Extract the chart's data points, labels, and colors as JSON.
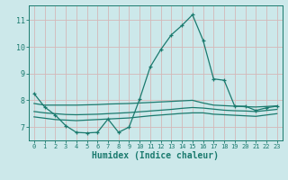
{
  "background_color": "#cce8ea",
  "grid_color": "#b8d8da",
  "line_color": "#1a7a6e",
  "xlabel": "Humidex (Indice chaleur)",
  "xlabel_fontsize": 7,
  "yticks": [
    7,
    8,
    9,
    10,
    11
  ],
  "xticks": [
    0,
    1,
    2,
    3,
    4,
    5,
    6,
    7,
    8,
    9,
    10,
    11,
    12,
    13,
    14,
    15,
    16,
    17,
    18,
    19,
    20,
    21,
    22,
    23
  ],
  "xlim": [
    -0.5,
    23.5
  ],
  "ylim": [
    6.5,
    11.55
  ],
  "line1_x": [
    0,
    1,
    2,
    3,
    4,
    5,
    6,
    7,
    8,
    9,
    10,
    11,
    12,
    13,
    14,
    15,
    16,
    17,
    18,
    19,
    20,
    21,
    22,
    23
  ],
  "line1_y": [
    8.25,
    7.75,
    7.45,
    7.05,
    6.8,
    6.78,
    6.8,
    7.3,
    6.8,
    7.0,
    8.05,
    9.25,
    9.9,
    10.45,
    10.8,
    11.2,
    10.25,
    8.8,
    8.75,
    7.78,
    7.78,
    7.62,
    7.72,
    7.78
  ],
  "line2_x": [
    0,
    1,
    2,
    3,
    4,
    5,
    6,
    7,
    8,
    9,
    10,
    11,
    12,
    13,
    14,
    15,
    16,
    17,
    18,
    19,
    20,
    21,
    22,
    23
  ],
  "line2_y": [
    7.88,
    7.82,
    7.82,
    7.82,
    7.82,
    7.83,
    7.84,
    7.86,
    7.87,
    7.88,
    7.9,
    7.92,
    7.94,
    7.96,
    7.98,
    8.0,
    7.9,
    7.82,
    7.8,
    7.78,
    7.76,
    7.75,
    7.77,
    7.79
  ],
  "line3_x": [
    0,
    1,
    2,
    3,
    4,
    5,
    6,
    7,
    8,
    9,
    10,
    11,
    12,
    13,
    14,
    15,
    16,
    17,
    18,
    19,
    20,
    21,
    22,
    23
  ],
  "line3_y": [
    7.58,
    7.53,
    7.5,
    7.47,
    7.46,
    7.47,
    7.48,
    7.5,
    7.52,
    7.54,
    7.57,
    7.6,
    7.63,
    7.66,
    7.7,
    7.73,
    7.71,
    7.67,
    7.63,
    7.61,
    7.6,
    7.58,
    7.62,
    7.66
  ],
  "line4_x": [
    0,
    1,
    2,
    3,
    4,
    5,
    6,
    7,
    8,
    9,
    10,
    11,
    12,
    13,
    14,
    15,
    16,
    17,
    18,
    19,
    20,
    21,
    22,
    23
  ],
  "line4_y": [
    7.38,
    7.33,
    7.28,
    7.26,
    7.24,
    7.26,
    7.28,
    7.3,
    7.32,
    7.34,
    7.38,
    7.42,
    7.45,
    7.48,
    7.51,
    7.53,
    7.53,
    7.48,
    7.46,
    7.44,
    7.42,
    7.4,
    7.45,
    7.5
  ]
}
